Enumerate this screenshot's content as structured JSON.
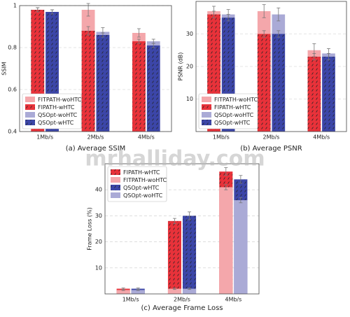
{
  "chart_data": [
    {
      "type": "bar",
      "caption": "(a)  Average SSIM",
      "ylabel": "SSIM",
      "categories": [
        "1Mb/s",
        "2Mb/s",
        "4Mb/s"
      ],
      "series": [
        {
          "name": "FITPATH-woHTC",
          "color": "#f4a7ab",
          "hatch": false,
          "values": [
            0.98,
            0.98,
            0.87
          ],
          "errors": [
            0.01,
            0.03,
            0.02
          ]
        },
        {
          "name": "FIPATH-wHTC",
          "color": "#e8323a",
          "hatch": true,
          "values": [
            0.98,
            0.88,
            0.83
          ],
          "errors": [
            0.01,
            0.02,
            0.01
          ]
        },
        {
          "name": "QSOpt-woHTC",
          "color": "#aaaad6",
          "hatch": false,
          "values": [
            0.97,
            0.875,
            0.83
          ],
          "errors": [
            0.01,
            0.02,
            0.01
          ]
        },
        {
          "name": "QSOpt-wHTC",
          "color": "#3c46a8",
          "hatch": true,
          "values": [
            0.97,
            0.86,
            0.81
          ],
          "errors": [
            0.01,
            0.01,
            0.01
          ]
        }
      ],
      "ylim": [
        0.4,
        1
      ],
      "yticks": [
        0.4,
        0.6,
        0.8,
        1
      ],
      "grid": true,
      "legend": "lower left"
    },
    {
      "type": "bar",
      "caption": "(b)  Average PSNR",
      "ylabel": "PSNR (dB)",
      "categories": [
        "1Mb/s",
        "2Mb/s",
        "4Mb/s"
      ],
      "series": [
        {
          "name": "FITPATH-woHTC",
          "color": "#f4a7ab",
          "hatch": false,
          "values": [
            37,
            37,
            25
          ],
          "errors": [
            1.5,
            2,
            2
          ]
        },
        {
          "name": "FIPATH-wHTC",
          "color": "#e8323a",
          "hatch": true,
          "values": [
            36,
            30,
            23
          ],
          "errors": [
            1,
            1,
            1
          ]
        },
        {
          "name": "QSOpt-woHTC",
          "color": "#aaaad6",
          "hatch": false,
          "values": [
            36,
            36,
            24
          ],
          "errors": [
            1.5,
            2,
            1.5
          ]
        },
        {
          "name": "QSOpt-wHTC",
          "color": "#3c46a8",
          "hatch": true,
          "values": [
            35,
            30,
            23
          ],
          "errors": [
            1,
            1,
            1
          ]
        }
      ],
      "ylim": [
        0,
        40
      ],
      "yticks": [
        10,
        20,
        30
      ],
      "grid": true,
      "legend": "lower left"
    },
    {
      "type": "bar",
      "caption": "(c)  Average Frame Loss",
      "ylabel": "Frame Loss (%)",
      "categories": [
        "1Mb/s",
        "2Mb/s",
        "4Mb/s"
      ],
      "series": [
        {
          "name": "FIPATH-wHTC",
          "color": "#e8323a",
          "hatch": true,
          "values": [
            2,
            28,
            47
          ],
          "errors": [
            0.3,
            1,
            1.5
          ]
        },
        {
          "name": "FITPATH-woHTC",
          "color": "#f4a7ab",
          "hatch": false,
          "values": [
            1.5,
            2,
            41
          ],
          "errors": [
            0.2,
            0.3,
            1
          ]
        },
        {
          "name": "QSOpt-wHTC",
          "color": "#3c46a8",
          "hatch": true,
          "values": [
            2,
            30,
            44
          ],
          "errors": [
            0.3,
            1.5,
            1.5
          ]
        },
        {
          "name": "QSOpt-woHTC",
          "color": "#aaaad6",
          "hatch": false,
          "values": [
            1.5,
            2,
            36
          ],
          "errors": [
            0.2,
            0.3,
            1
          ]
        }
      ],
      "ylim": [
        0,
        50
      ],
      "yticks": [
        10,
        20,
        30,
        40
      ],
      "grid": true,
      "legend": "upper left"
    }
  ],
  "watermark": "mrhalliday.com"
}
